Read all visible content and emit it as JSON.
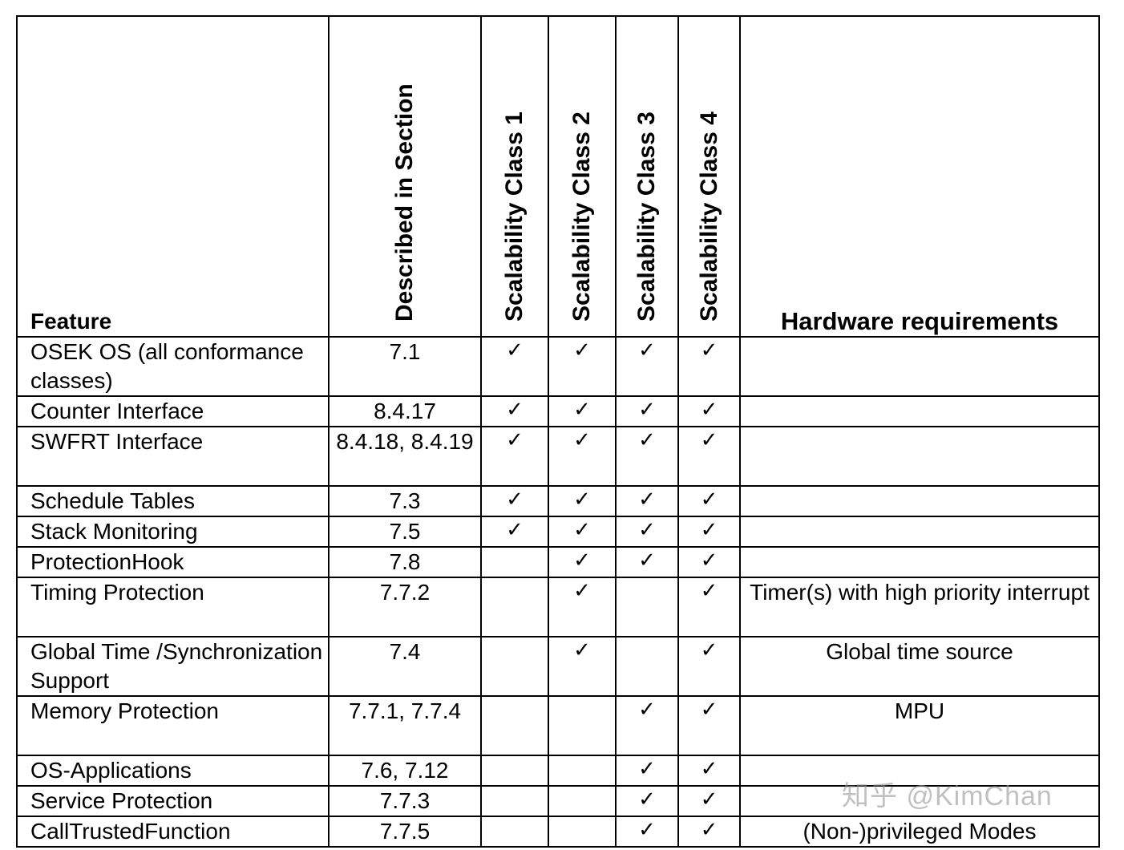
{
  "header": {
    "feature": "Feature",
    "section": "Described in Section",
    "sc1": "Scalability Class 1",
    "sc2": "Scalability Class 2",
    "sc3": "Scalability Class 3",
    "sc4": "Scalability Class 4",
    "hardware": "Hardware requirements"
  },
  "check_mark": "✓",
  "rows": [
    {
      "feature": "OSEK OS (all conformance classes)",
      "section": "7.1",
      "sc": [
        true,
        true,
        true,
        true
      ],
      "hardware": ""
    },
    {
      "feature": "Counter Interface",
      "section": "8.4.17",
      "sc": [
        true,
        true,
        true,
        true
      ],
      "hardware": ""
    },
    {
      "feature": "SWFRT Interface",
      "section": "8.4.18, 8.4.19",
      "sc": [
        true,
        true,
        true,
        true
      ],
      "hardware": ""
    },
    {
      "feature": "Schedule Tables",
      "section": "7.3",
      "sc": [
        true,
        true,
        true,
        true
      ],
      "hardware": ""
    },
    {
      "feature": "Stack Monitoring",
      "section": "7.5",
      "sc": [
        true,
        true,
        true,
        true
      ],
      "hardware": ""
    },
    {
      "feature": "ProtectionHook",
      "section": "7.8",
      "sc": [
        false,
        true,
        true,
        true
      ],
      "hardware": ""
    },
    {
      "feature": "Timing Protection",
      "section": "7.7.2",
      "sc": [
        false,
        true,
        false,
        true
      ],
      "hardware": "Timer(s) with high priority interrupt"
    },
    {
      "feature": "Global Time /Synchronization Support",
      "section": "7.4",
      "sc": [
        false,
        true,
        false,
        true
      ],
      "hardware": "Global time source"
    },
    {
      "feature": "Memory Protection",
      "section": "7.7.1, 7.7.4",
      "sc": [
        false,
        false,
        true,
        true
      ],
      "hardware": "MPU"
    },
    {
      "feature": "OS-Applications",
      "section": "7.6, 7.12",
      "sc": [
        false,
        false,
        true,
        true
      ],
      "hardware": ""
    },
    {
      "feature": "Service Protection",
      "section": "7.7.3",
      "sc": [
        false,
        false,
        true,
        true
      ],
      "hardware": ""
    },
    {
      "feature": "CallTrustedFunction",
      "section": "7.7.5",
      "sc": [
        false,
        false,
        true,
        true
      ],
      "hardware": "(Non-)privileged Modes"
    }
  ],
  "watermark": "知乎 @KimChan"
}
